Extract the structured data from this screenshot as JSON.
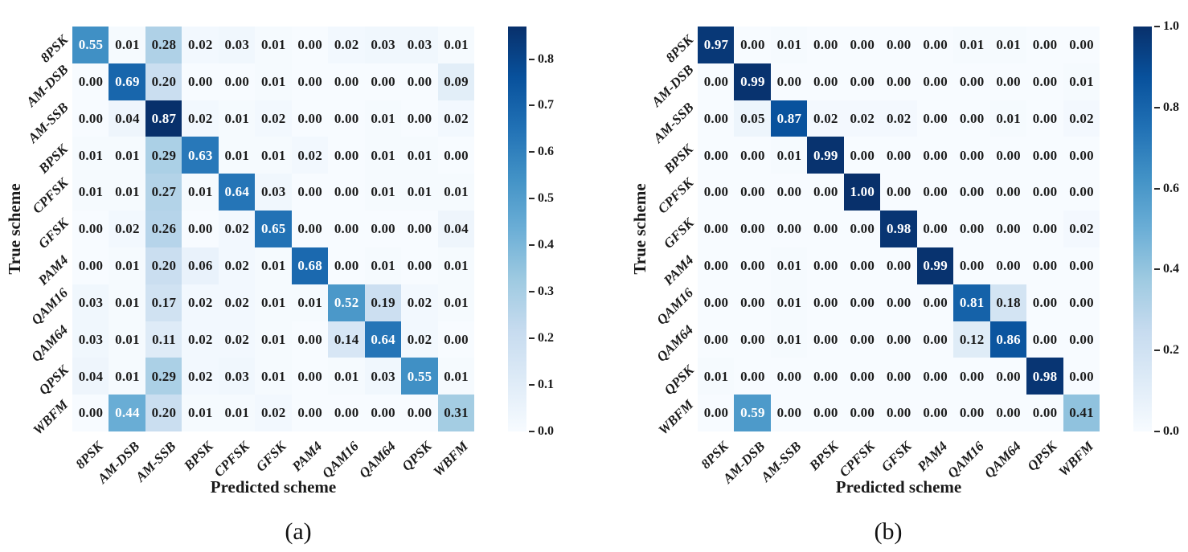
{
  "page": {
    "background": "#ffffff",
    "text_color": "#1a1a1a"
  },
  "colormap": {
    "name": "Blues",
    "stops": [
      "#f7fbff",
      "#deebf7",
      "#c6dbef",
      "#9ecae1",
      "#6baed6",
      "#4292c6",
      "#2171b5",
      "#08519c",
      "#08306b"
    ],
    "cell_text_high": "#ffffff",
    "cell_text_low": "#1c1c1c"
  },
  "chart_data": [
    {
      "type": "heatmap",
      "caption": "(a)",
      "xlabel": "Predicted scheme",
      "ylabel": "True scheme",
      "categories": [
        "8PSK",
        "AM-DSB",
        "AM-SSB",
        "BPSK",
        "CPFSK",
        "GFSK",
        "PAM4",
        "QAM16",
        "QAM64",
        "QPSK",
        "WBFM"
      ],
      "matrix": [
        [
          0.55,
          0.01,
          0.28,
          0.02,
          0.03,
          0.01,
          0.0,
          0.02,
          0.03,
          0.03,
          0.01
        ],
        [
          0.0,
          0.69,
          0.2,
          0.0,
          0.0,
          0.01,
          0.0,
          0.0,
          0.0,
          0.0,
          0.09
        ],
        [
          0.0,
          0.04,
          0.87,
          0.02,
          0.01,
          0.02,
          0.0,
          0.0,
          0.01,
          0.0,
          0.02
        ],
        [
          0.01,
          0.01,
          0.29,
          0.63,
          0.01,
          0.01,
          0.02,
          0.0,
          0.01,
          0.01,
          0.0
        ],
        [
          0.01,
          0.01,
          0.27,
          0.01,
          0.64,
          0.03,
          0.0,
          0.0,
          0.01,
          0.01,
          0.01
        ],
        [
          0.0,
          0.02,
          0.26,
          0.0,
          0.02,
          0.65,
          0.0,
          0.0,
          0.0,
          0.0,
          0.04
        ],
        [
          0.0,
          0.01,
          0.2,
          0.06,
          0.02,
          0.01,
          0.68,
          0.0,
          0.01,
          0.0,
          0.01
        ],
        [
          0.03,
          0.01,
          0.17,
          0.02,
          0.02,
          0.01,
          0.01,
          0.52,
          0.19,
          0.02,
          0.01
        ],
        [
          0.03,
          0.01,
          0.11,
          0.02,
          0.02,
          0.01,
          0.0,
          0.14,
          0.64,
          0.02,
          0.0
        ],
        [
          0.04,
          0.01,
          0.29,
          0.02,
          0.03,
          0.01,
          0.0,
          0.01,
          0.03,
          0.55,
          0.01
        ],
        [
          0.0,
          0.44,
          0.2,
          0.01,
          0.01,
          0.02,
          0.0,
          0.0,
          0.0,
          0.0,
          0.31
        ]
      ],
      "vmin": 0.0,
      "vmax": 0.87,
      "colorbar_ticks": [
        0.8,
        0.7,
        0.6,
        0.5,
        0.4,
        0.3,
        0.2,
        0.1,
        0.0
      ],
      "legend_position": "right-colorbar",
      "grid": false
    },
    {
      "type": "heatmap",
      "caption": "(b)",
      "xlabel": "Predicted scheme",
      "ylabel": "True scheme",
      "categories": [
        "8PSK",
        "AM-DSB",
        "AM-SSB",
        "BPSK",
        "CPFSK",
        "GFSK",
        "PAM4",
        "QAM16",
        "QAM64",
        "QPSK",
        "WBFM"
      ],
      "matrix": [
        [
          0.97,
          0.0,
          0.01,
          0.0,
          0.0,
          0.0,
          0.0,
          0.01,
          0.01,
          0.0,
          0.0
        ],
        [
          0.0,
          0.99,
          0.0,
          0.0,
          0.0,
          0.0,
          0.0,
          0.0,
          0.0,
          0.0,
          0.01
        ],
        [
          0.0,
          0.05,
          0.87,
          0.02,
          0.02,
          0.02,
          0.0,
          0.0,
          0.01,
          0.0,
          0.02
        ],
        [
          0.0,
          0.0,
          0.01,
          0.99,
          0.0,
          0.0,
          0.0,
          0.0,
          0.0,
          0.0,
          0.0
        ],
        [
          0.0,
          0.0,
          0.0,
          0.0,
          1.0,
          0.0,
          0.0,
          0.0,
          0.0,
          0.0,
          0.0
        ],
        [
          0.0,
          0.0,
          0.0,
          0.0,
          0.0,
          0.98,
          0.0,
          0.0,
          0.0,
          0.0,
          0.02
        ],
        [
          0.0,
          0.0,
          0.01,
          0.0,
          0.0,
          0.0,
          0.99,
          0.0,
          0.0,
          0.0,
          0.0
        ],
        [
          0.0,
          0.0,
          0.01,
          0.0,
          0.0,
          0.0,
          0.0,
          0.81,
          0.18,
          0.0,
          0.0
        ],
        [
          0.0,
          0.0,
          0.01,
          0.0,
          0.0,
          0.0,
          0.0,
          0.12,
          0.86,
          0.0,
          0.0
        ],
        [
          0.01,
          0.0,
          0.0,
          0.0,
          0.0,
          0.0,
          0.0,
          0.0,
          0.0,
          0.98,
          0.0
        ],
        [
          0.0,
          0.59,
          0.0,
          0.0,
          0.0,
          0.0,
          0.0,
          0.0,
          0.0,
          0.0,
          0.41
        ]
      ],
      "vmin": 0.0,
      "vmax": 1.0,
      "colorbar_ticks": [
        1.0,
        0.8,
        0.6,
        0.4,
        0.2,
        0.0
      ],
      "legend_position": "right-colorbar",
      "grid": false
    }
  ]
}
